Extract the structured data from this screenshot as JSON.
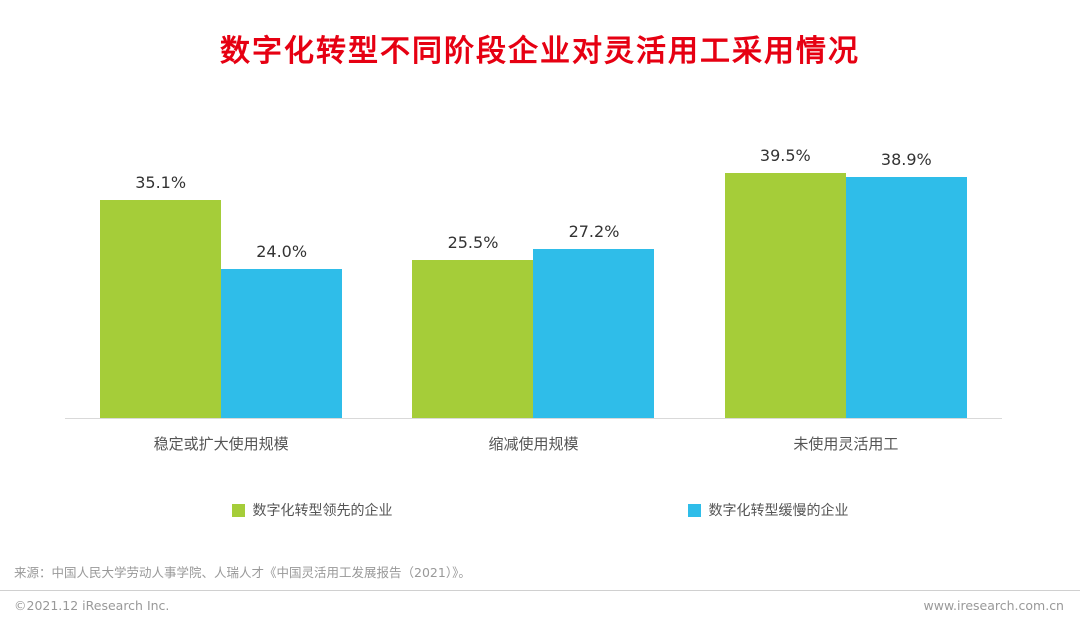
{
  "title": "数字化转型不同阶段企业对灵活用工采用情况",
  "chart_data": {
    "type": "bar",
    "title": "数字化转型不同阶段企业对灵活用工采用情况",
    "categories": [
      "稳定或扩大使用规模",
      "缩减使用规模",
      "未使用灵活用工"
    ],
    "series": [
      {
        "name": "数字化转型领先的企业",
        "color": "#a5cd39",
        "values": [
          35.1,
          25.5,
          39.5
        ]
      },
      {
        "name": "数字化转型缓慢的企业",
        "color": "#2fbde9",
        "values": [
          24.0,
          27.2,
          38.9
        ]
      }
    ],
    "value_suffix": "%",
    "xlabel": "",
    "ylabel": "",
    "ylim": [
      0,
      45
    ],
    "grid": false,
    "legend_position": "bottom"
  },
  "source": "来源：中国人民大学劳动人事学院、人瑞人才《中国灵活用工发展报告（2021）》。",
  "footer": {
    "left": "©2021.12 iResearch Inc.",
    "right": "www.iresearch.com.cn"
  },
  "colors": {
    "title": "#e60012",
    "series1": "#a5cd39",
    "series2": "#2fbde9",
    "baseline": "#d9d9d9"
  }
}
